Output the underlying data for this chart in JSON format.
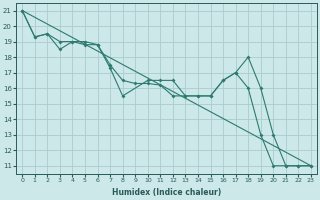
{
  "xlabel": "Humidex (Indice chaleur)",
  "bg_color": "#cce8e8",
  "grid_color": "#aacccc",
  "line_color": "#2d7a6e",
  "xlim": [
    -0.5,
    23.5
  ],
  "ylim": [
    10.5,
    21.5
  ],
  "xticks": [
    0,
    1,
    2,
    3,
    4,
    5,
    6,
    7,
    8,
    9,
    10,
    11,
    12,
    13,
    14,
    15,
    16,
    17,
    18,
    19,
    20,
    21,
    22,
    23
  ],
  "yticks": [
    11,
    12,
    13,
    14,
    15,
    16,
    17,
    18,
    19,
    20,
    21
  ],
  "line1": {
    "x": [
      0,
      23
    ],
    "y": [
      21,
      11
    ]
  },
  "line2": {
    "x": [
      0,
      1,
      2,
      3,
      4,
      5,
      6,
      7,
      8,
      10,
      11,
      12,
      13,
      14,
      15,
      16,
      17,
      18,
      19,
      20,
      21,
      22,
      23
    ],
    "y": [
      21,
      19.3,
      19.5,
      18.5,
      19.0,
      19.0,
      18.8,
      17.3,
      15.5,
      16.5,
      16.5,
      16.5,
      15.5,
      15.5,
      15.5,
      16.5,
      17.0,
      18.0,
      16.0,
      13.0,
      11.0,
      11.0,
      11.0
    ]
  },
  "line3": {
    "x": [
      0,
      1,
      2,
      3,
      4,
      5,
      6,
      7,
      8,
      9,
      10,
      11,
      12,
      13,
      14,
      15,
      16,
      17,
      18,
      19,
      20,
      21,
      22,
      23
    ],
    "y": [
      21,
      19.3,
      19.5,
      19.0,
      19.0,
      18.8,
      18.8,
      17.5,
      16.5,
      16.3,
      16.3,
      16.2,
      15.5,
      15.5,
      15.5,
      15.5,
      16.5,
      17.0,
      16.0,
      13.0,
      11.0,
      11.0,
      11.0,
      11.0
    ]
  }
}
